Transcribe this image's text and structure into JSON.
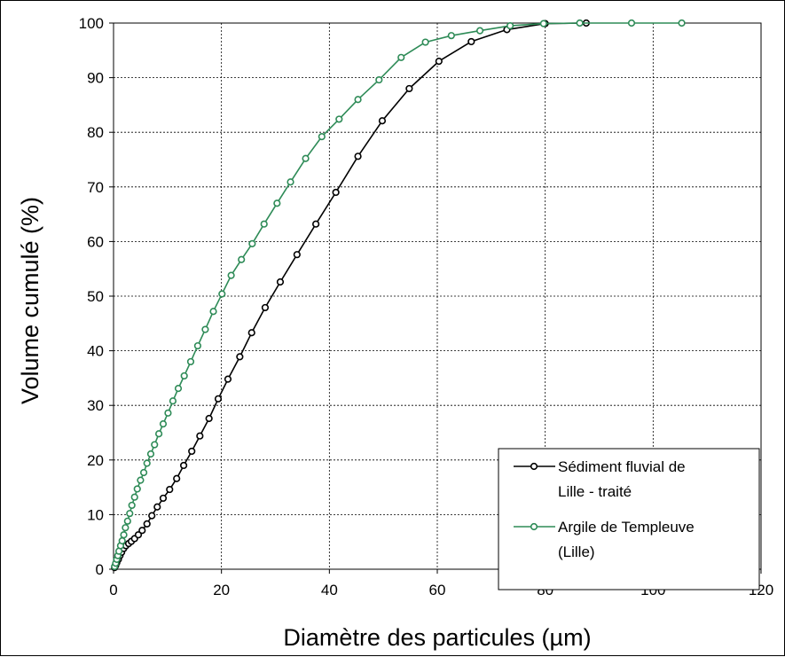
{
  "chart_data": {
    "type": "line",
    "xlabel": "Diamètre des particules (µm)",
    "ylabel": "Volume cumulé (%)",
    "xlim": [
      0,
      120
    ],
    "ylim": [
      0,
      100
    ],
    "xticks": [
      "0",
      "20",
      "40",
      "60",
      "80",
      "100",
      "120"
    ],
    "yticks": [
      "0",
      "10",
      "20",
      "30",
      "40",
      "50",
      "60",
      "70",
      "80",
      "90",
      "100"
    ],
    "grid": true,
    "legend_position": "bottom-right",
    "series": [
      {
        "name": "Sédiment fluvial de Lille - traité",
        "legend_lines": [
          "Sédiment fluvial de",
          "Lille - traité"
        ],
        "color": "#000000",
        "marker": "circle-open",
        "x": [
          0.2,
          0.4,
          0.6,
          0.9,
          1.2,
          1.5,
          1.9,
          2.3,
          2.8,
          3.3,
          3.9,
          4.6,
          5.3,
          6.2,
          7.1,
          8.1,
          9.2,
          10.4,
          11.7,
          13.0,
          14.5,
          16.0,
          17.7,
          19.4,
          21.2,
          23.4,
          25.6,
          28.1,
          30.9,
          34.0,
          37.5,
          41.2,
          45.3,
          49.8,
          54.8,
          60.3,
          66.3,
          72.9,
          80.0,
          87.6
        ],
        "y": [
          0.3,
          0.7,
          1.2,
          1.8,
          2.5,
          3.1,
          3.8,
          4.3,
          4.7,
          5.1,
          5.6,
          6.3,
          7.1,
          8.3,
          9.8,
          11.4,
          13.0,
          14.6,
          16.6,
          19.0,
          21.6,
          24.4,
          27.6,
          31.2,
          34.8,
          38.9,
          43.3,
          47.9,
          52.6,
          57.6,
          63.2,
          69.0,
          75.6,
          82.1,
          88.0,
          93.0,
          96.6,
          98.8,
          99.9,
          100
        ]
      },
      {
        "name": "Argile de Templeuve (Lille)",
        "legend_lines": [
          "Argile de Templeuve",
          "(Lille)"
        ],
        "color": "#2e8b57",
        "marker": "circle-open",
        "x": [
          0.2,
          0.4,
          0.6,
          0.8,
          1.0,
          1.3,
          1.6,
          1.9,
          2.2,
          2.6,
          3.0,
          3.4,
          3.9,
          4.4,
          5.0,
          5.6,
          6.2,
          6.9,
          7.6,
          8.4,
          9.2,
          10.1,
          11.0,
          12.0,
          13.1,
          14.3,
          15.6,
          17.0,
          18.5,
          20.1,
          21.8,
          23.7,
          25.7,
          27.9,
          30.3,
          32.8,
          35.6,
          38.6,
          41.8,
          45.3,
          49.2,
          53.3,
          57.8,
          62.6,
          67.9,
          73.5,
          79.7,
          86.4,
          96.0,
          105.3
        ],
        "y": [
          0.5,
          1.1,
          1.8,
          2.5,
          3.3,
          4.3,
          5.2,
          6.3,
          7.6,
          8.8,
          10.2,
          11.7,
          13.2,
          14.7,
          16.3,
          17.7,
          19.4,
          21.1,
          22.8,
          24.8,
          26.6,
          28.6,
          30.8,
          33.1,
          35.4,
          38.0,
          40.9,
          43.9,
          47.2,
          50.4,
          53.8,
          56.7,
          59.6,
          63.2,
          67.0,
          70.9,
          75.2,
          79.2,
          82.4,
          86.0,
          89.6,
          93.7,
          96.5,
          97.7,
          98.6,
          99.5,
          99.9,
          100,
          100,
          100
        ]
      }
    ]
  }
}
